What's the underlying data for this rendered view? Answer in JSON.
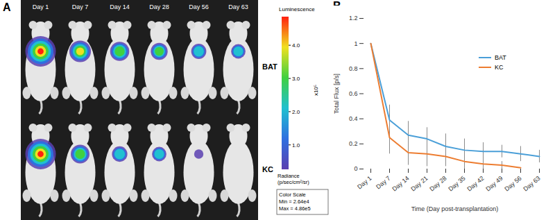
{
  "image_panel": {
    "panel_label": "A",
    "columns": [
      "Day 1",
      "Day 7",
      "Day 14",
      "Day 28",
      "Day 56",
      "Day 63"
    ],
    "rows": [
      "BAT",
      "KC"
    ],
    "colorbar": {
      "title": "Luminescence",
      "multiplier": "x10⁵",
      "range": [
        26400,
        486000
      ],
      "ticks": [
        {
          "value": 100000,
          "label": "1.0"
        },
        {
          "value": 200000,
          "label": "2.0"
        },
        {
          "value": 300000,
          "label": "3.0"
        },
        {
          "value": 400000,
          "label": "4.0"
        }
      ],
      "unit_label": [
        "Radiance",
        "(p/sec/cm²/sr)"
      ],
      "scale_box": [
        "Color Scale",
        "Min = 2.64e4",
        "Max = 4.86e5"
      ]
    }
  },
  "chart_data": {
    "type": "line",
    "panel_label": "B",
    "x_label": "Time (Day post-transplantation)",
    "y_label": "Total Flux [p/s]",
    "categories": [
      "Day 1",
      "Day 7",
      "Day 14",
      "Day 21",
      "Day 28",
      "Day 35",
      "Day 42",
      "Day 49",
      "Day 56",
      "Day 63"
    ],
    "series": [
      {
        "name": "BAT",
        "color": "#4a9fd8",
        "values": [
          1,
          0.39,
          0.27,
          0.24,
          0.18,
          0.15,
          0.14,
          0.14,
          0.12,
          0.1
        ],
        "errors": [
          0,
          0.12,
          0.11,
          0.09,
          0.1,
          0.09,
          0.07,
          0.05,
          0.06,
          0.05
        ]
      },
      {
        "name": "KC",
        "color": "#ed7d31",
        "values": [
          1,
          0.25,
          0.13,
          0.12,
          0.1,
          0.06,
          0.04,
          0.03,
          0.01,
          null
        ],
        "errors": [
          0,
          0.13,
          0.1,
          0.1,
          0.08,
          0.06,
          0.05,
          0.03,
          0,
          null
        ]
      }
    ],
    "ylim": [
      0,
      1.2
    ],
    "yticks": [
      0,
      0.2,
      0.4,
      0.6,
      0.8,
      1,
      1.2
    ],
    "legend": "right",
    "grid": false
  }
}
